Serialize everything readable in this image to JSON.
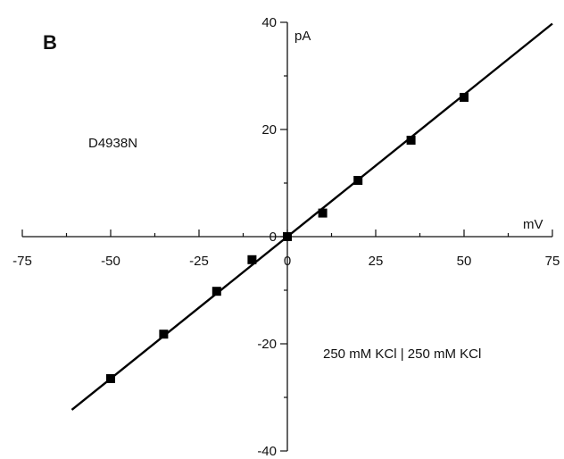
{
  "chart_data": {
    "type": "scatter",
    "panel_label": "B",
    "x_unit": "mV",
    "y_unit": "pA",
    "xlim": [
      -75,
      75
    ],
    "ylim": [
      -40,
      40
    ],
    "x_major_ticks": [
      -75,
      -50,
      -25,
      0,
      25,
      50,
      75
    ],
    "x_tick_labels": [
      "-75",
      "-50",
      "-25",
      "0",
      "25",
      "50",
      "75"
    ],
    "x_minor_step": 12.5,
    "y_major_ticks": [
      -40,
      -20,
      0,
      20,
      40
    ],
    "y_tick_labels": [
      "-40",
      "-20",
      "0",
      "20",
      "40"
    ],
    "y_minor_step": 10,
    "grid": false,
    "annotations": [
      "D4938N",
      "250 mM KCl | 250 mM KCl"
    ],
    "series": [
      {
        "marker": "square",
        "color": "#000000",
        "points": [
          {
            "x": -50,
            "y": -26.5
          },
          {
            "x": -35,
            "y": -18.2
          },
          {
            "x": -20,
            "y": -10.2
          },
          {
            "x": -10,
            "y": -4.3
          },
          {
            "x": 0,
            "y": 0
          },
          {
            "x": 10,
            "y": 4.4
          },
          {
            "x": 20,
            "y": 10.5
          },
          {
            "x": 35,
            "y": 18.0
          },
          {
            "x": 50,
            "y": 26.0
          }
        ]
      }
    ],
    "fit_line": {
      "slope": 0.53,
      "intercept": 0,
      "x_range": [
        -61,
        75
      ],
      "color": "#000000"
    }
  }
}
